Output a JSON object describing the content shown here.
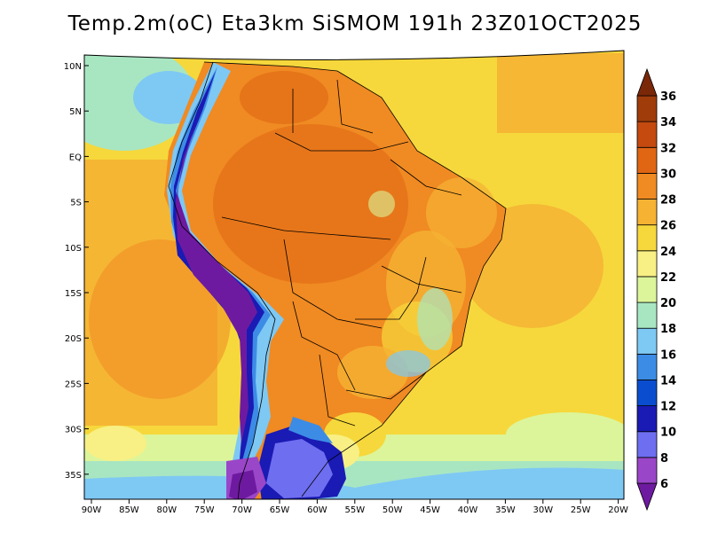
{
  "title": "Temp.2m(oC) Eta3km SiSMOM 191h 23Z01OCT2025",
  "map": {
    "lat_labels": [
      "10N",
      "5N",
      "EQ",
      "5S",
      "10S",
      "15S",
      "20S",
      "25S",
      "30S",
      "35S"
    ],
    "lon_labels": [
      "90W",
      "85W",
      "80W",
      "75W",
      "70W",
      "65W",
      "60W",
      "55W",
      "50W",
      "45W",
      "40W",
      "35W",
      "30W",
      "25W",
      "20W"
    ]
  },
  "colorbar": {
    "labels": [
      "6",
      "8",
      "10",
      "12",
      "14",
      "16",
      "18",
      "20",
      "22",
      "24",
      "26",
      "28",
      "30",
      "32",
      "34",
      "36"
    ],
    "colors": [
      "#6e1aa0",
      "#9a46c8",
      "#6e6ef0",
      "#1a1ab4",
      "#0a4ecf",
      "#3c8ce6",
      "#7ec8f4",
      "#a8e6c2",
      "#dcf59a",
      "#f8f084",
      "#f6d83c",
      "#f5b233",
      "#f08a22",
      "#e06614",
      "#c44a10",
      "#a03c0a",
      "#7a2808"
    ]
  }
}
